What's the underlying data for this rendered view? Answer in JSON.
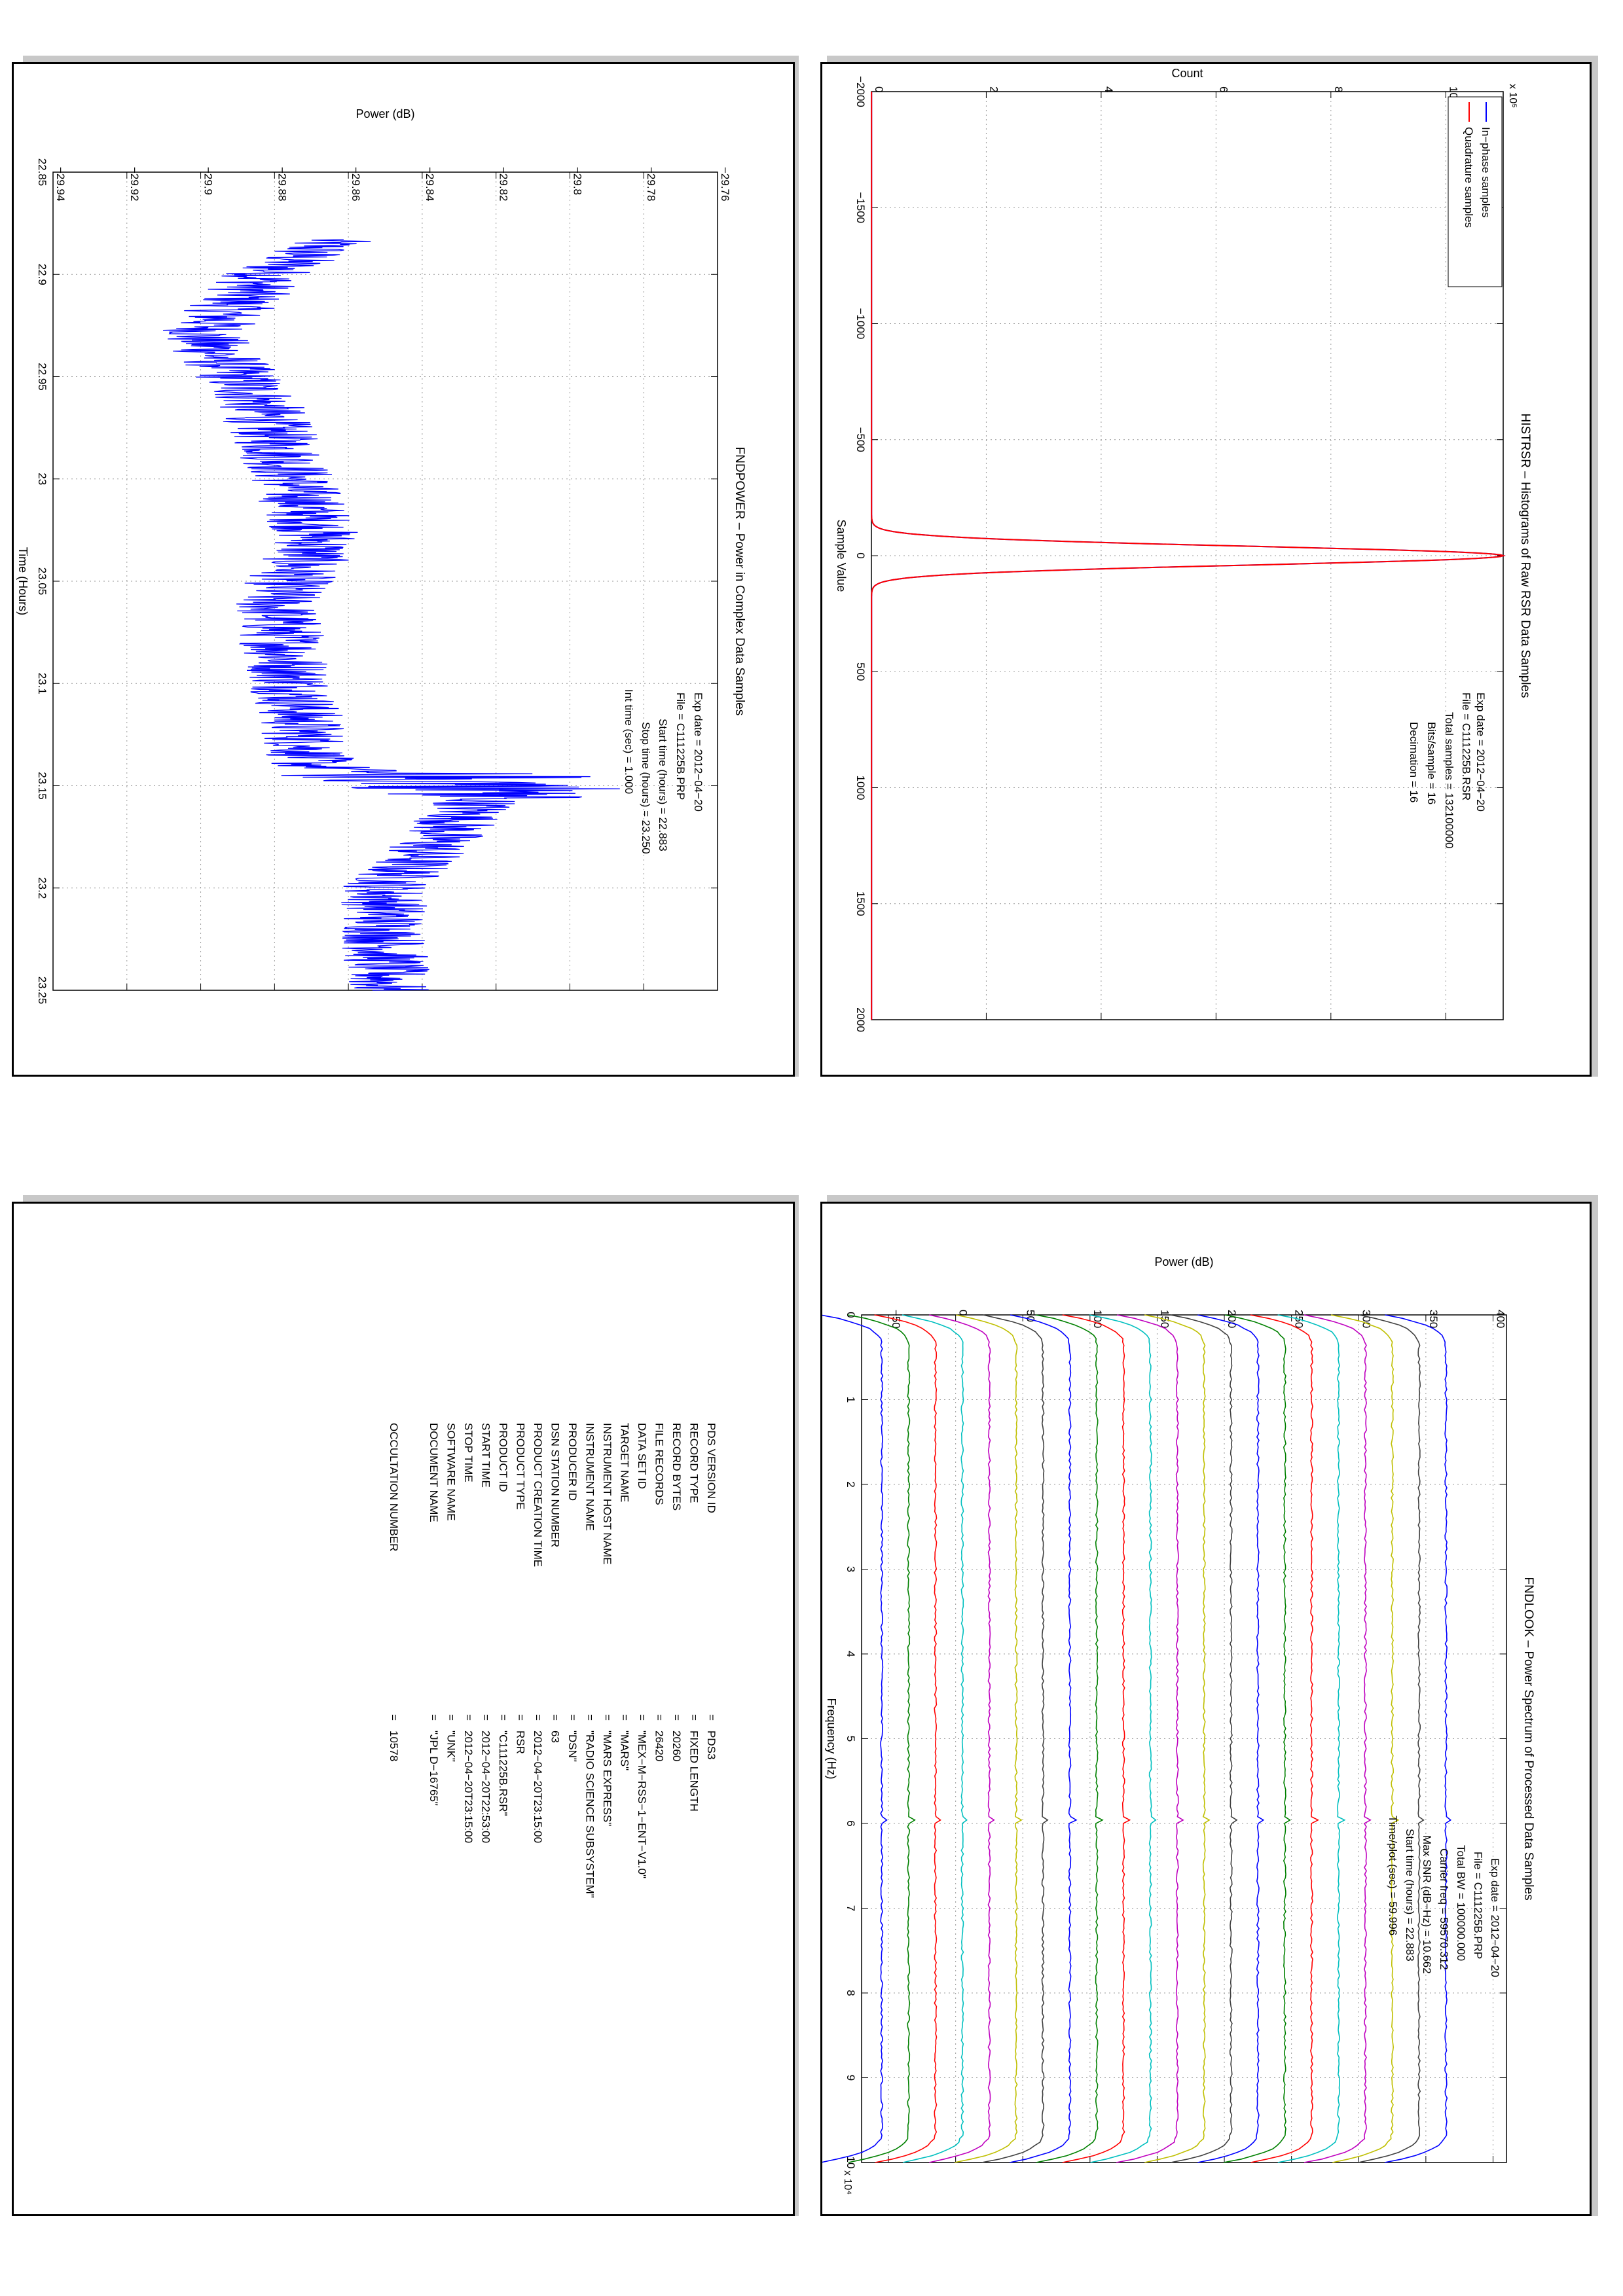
{
  "histrsr": {
    "title": "HISTRSR – Histograms of Raw RSR Data Samples",
    "xlabel": "Sample Value",
    "ylabel": "Count",
    "yexp": "x 10",
    "yexp_power": "5",
    "legend": [
      "In−phase samples",
      "Quadrature samples"
    ],
    "info": [
      {
        "label": "Exp date = ",
        "value": "2012−04−20"
      },
      {
        "label": "File = ",
        "value": "C111225B.RSR"
      },
      {
        "label": "Total samples = ",
        "value": "132100000"
      },
      {
        "label": "Bits/sample    =",
        "value": "16"
      },
      {
        "label": "Decimation    =",
        "value": "16"
      }
    ]
  },
  "fndpower": {
    "title": "FNDPOWER – Power in Complex Data Samples",
    "xlabel": "Time (Hours)",
    "ylabel": "Power (dB)",
    "info": [
      {
        "label": "Exp date = ",
        "value": "2012−04−20"
      },
      {
        "label": "File = ",
        "value": "C111225B.PRP"
      },
      {
        "label": "Start time (hours) = ",
        "value": "22.883"
      },
      {
        "label": "Stop time (hours) = ",
        "value": "23.250"
      },
      {
        "label": "Int time (sec) = ",
        "value": "1.000"
      }
    ]
  },
  "fndlook": {
    "title": "FNDLOOK – Power Spectrum of Processed Data Samples",
    "xlabel": "Frequency (Hz)",
    "ylabel": "Power (dB)",
    "xexp": "x 10",
    "xexp_power": "4",
    "info": [
      {
        "label": "Exp date = ",
        "value": "2012−04−20"
      },
      {
        "label": "File = ",
        "value": "C111225B.PRP"
      },
      {
        "label": "Total BW = ",
        "value": "100000.000"
      },
      {
        "label": "Carrier freq = ",
        "value": "59570.312"
      },
      {
        "label": "Max SNR (dB−Hz) = ",
        "value": "10.662"
      },
      {
        "label": "Start time (hours) = ",
        "value": "22.883"
      },
      {
        "label": "Time/plot (sec) = ",
        "value": "59.996"
      }
    ]
  },
  "label_table": [
    {
      "key": "PDS VERSION ID",
      "value": "PDS3"
    },
    {
      "key": "RECORD TYPE",
      "value": "FIXED LENGTH"
    },
    {
      "key": "RECORD BYTES",
      "value": "20260"
    },
    {
      "key": "FILE RECORDS",
      "value": "26420"
    },
    {
      "key": "DATA SET ID",
      "value": "\"MEX−M−RSS−1−ENT−V1.0\""
    },
    {
      "key": "TARGET NAME",
      "value": "\"MARS\""
    },
    {
      "key": "INSTRUMENT HOST NAME",
      "value": "\"MARS EXPRESS\""
    },
    {
      "key": "INSTRUMENT NAME",
      "value": "\"RADIO SCIENCE SUBSYSTEM\""
    },
    {
      "key": "PRODUCER ID",
      "value": "\"DSN\""
    },
    {
      "key": "DSN STATION NUMBER",
      "value": "63"
    },
    {
      "key": "PRODUCT CREATION TIME",
      "value": "2012−04−20T23:15:00"
    },
    {
      "key": "PRODUCT TYPE",
      "value": "RSR"
    },
    {
      "key": "PRODUCT ID",
      "value": "\"C111225B.RSR\""
    },
    {
      "key": "START TIME",
      "value": "2012−04−20T22:53:00"
    },
    {
      "key": "STOP TIME",
      "value": "2012−04−20T23:15:00"
    },
    {
      "key": "SOFTWARE NAME",
      "value": "\"UNK\""
    },
    {
      "key": "DOCUMENT NAME",
      "value": "\"JPL D−16765\""
    },
    {
      "key": "",
      "value": ""
    },
    {
      "key": "OCCULTATION NUMBER",
      "value": "10578"
    }
  ],
  "table_eq": "=",
  "chart_data": [
    {
      "type": "line",
      "title": "HISTRSR – Histograms of Raw RSR Data Samples",
      "xlabel": "Sample Value",
      "ylabel": "Count",
      "xlim": [
        -2000,
        2000
      ],
      "ylim": [
        0,
        1100000
      ],
      "xticks": [
        -2000,
        -1500,
        -1000,
        -500,
        0,
        500,
        1000,
        1500,
        2000
      ],
      "yticks": [
        0,
        2,
        4,
        6,
        8,
        10
      ],
      "ytick_scale": 100000,
      "series": [
        {
          "name": "In−phase samples",
          "color": "#0000ff",
          "peak": 1100000,
          "sigma": 40
        },
        {
          "name": "Quadrature samples",
          "color": "#ff0000",
          "peak": 1100000,
          "sigma": 40
        }
      ],
      "grid": true,
      "legend": "top-left"
    },
    {
      "type": "line",
      "title": "FNDPOWER – Power in Complex Data Samples",
      "xlabel": "Time (Hours)",
      "ylabel": "Power (dB)",
      "xlim": [
        22.85,
        23.25
      ],
      "ylim": [
        -29.94,
        -29.76
      ],
      "xticks": [
        22.85,
        22.9,
        22.95,
        23,
        23.05,
        23.1,
        23.15,
        23.2,
        23.25
      ],
      "yticks": [
        -29.94,
        -29.92,
        -29.9,
        -29.88,
        -29.86,
        -29.84,
        -29.82,
        -29.8,
        -29.78,
        -29.76
      ],
      "series": [
        {
          "name": "",
          "color": "#0000ff",
          "x_range": [
            22.883,
            23.25
          ],
          "trend_x": [
            22.883,
            22.9,
            22.93,
            22.96,
            23.0,
            23.03,
            23.06,
            23.1,
            23.14,
            23.15,
            23.2,
            23.25
          ],
          "trend_y": [
            -29.865,
            -29.882,
            -29.9,
            -29.885,
            -29.875,
            -29.868,
            -29.88,
            -29.875,
            -29.87,
            -29.82,
            -29.85,
            -29.85
          ],
          "noise_amplitude": 0.012
        }
      ],
      "grid": true
    },
    {
      "type": "line",
      "title": "FNDLOOK – Power Spectrum of Processed Data Samples",
      "xlabel": "Frequency (Hz)",
      "ylabel": "Power (dB)",
      "xlim": [
        0,
        100000
      ],
      "ylim": [
        -70,
        410
      ],
      "xticks": [
        0,
        1,
        2,
        3,
        4,
        5,
        6,
        7,
        8,
        9,
        10
      ],
      "xtick_scale": 10000,
      "yticks": [
        -50,
        0,
        50,
        100,
        150,
        200,
        250,
        300,
        350,
        400
      ],
      "series_offsets": [
        -55,
        -35,
        -15,
        5,
        25,
        45,
        65,
        85,
        105,
        125,
        145,
        165,
        185,
        205,
        225,
        245,
        265,
        285,
        305,
        325,
        345,
        365
      ],
      "series_colors": [
        "#0000ff",
        "#008000",
        "#ff0000",
        "#00bfbf",
        "#bf00bf",
        "#bfbf00",
        "#404040"
      ],
      "grid": true
    }
  ]
}
